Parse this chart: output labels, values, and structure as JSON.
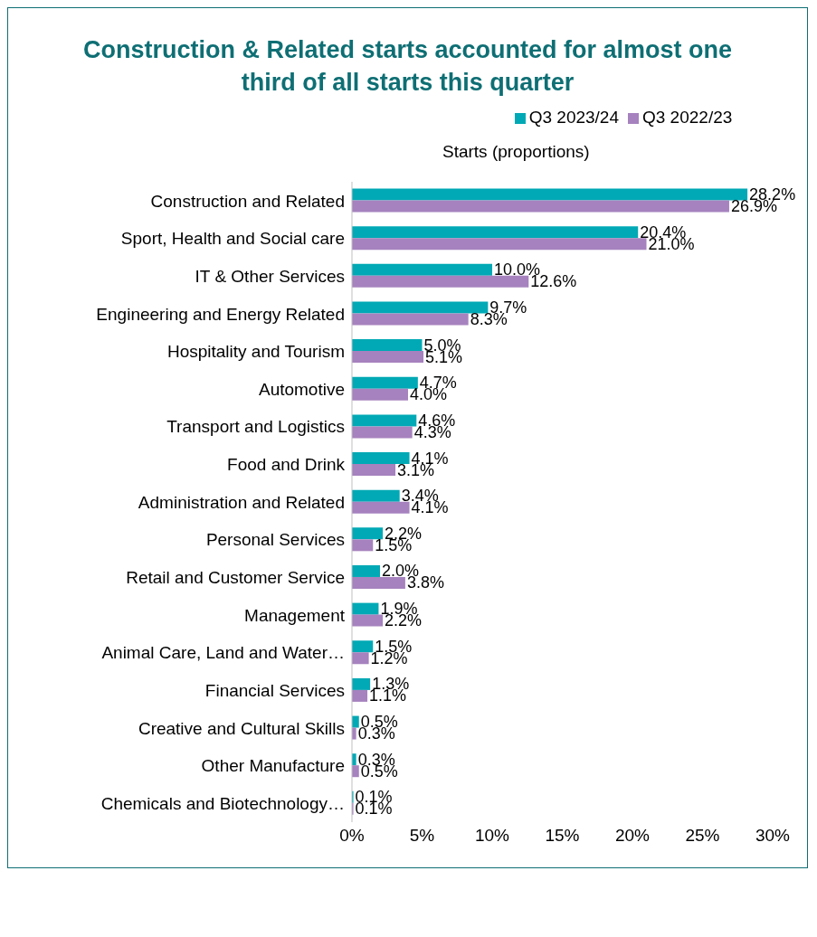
{
  "chart_data": {
    "type": "bar",
    "orientation": "horizontal",
    "title": "Construction & Related starts accounted for almost one third of all starts this quarter",
    "xlabel": "Starts (proportions)",
    "categories": [
      "Construction and Related",
      "Sport, Health and Social care",
      "IT & Other Services",
      "Engineering and Energy Related",
      "Hospitality and Tourism",
      "Automotive",
      "Transport and Logistics",
      "Food and Drink",
      "Administration and Related",
      "Personal Services",
      "Retail and Customer Service",
      "Management",
      "Animal Care, Land and Water…",
      "Financial Services",
      "Creative and Cultural Skills",
      "Other Manufacture",
      "Chemicals and Biotechnology…"
    ],
    "series": [
      {
        "name": "Q3 2023/24",
        "color": "#00a9b5",
        "values": [
          28.2,
          20.4,
          10.0,
          9.7,
          5.0,
          4.7,
          4.6,
          4.1,
          3.4,
          2.2,
          2.0,
          1.9,
          1.5,
          1.3,
          0.5,
          0.3,
          0.1
        ],
        "value_labels": [
          "28.2%",
          "20.4%",
          "10.0%",
          "9.7%",
          "5.0%",
          "4.7%",
          "4.6%",
          "4.1%",
          "3.4%",
          "2.2%",
          "2.0%",
          "1.9%",
          "1.5%",
          "1.3%",
          "0.5%",
          "0.3%",
          "0.1%"
        ]
      },
      {
        "name": "Q3 2022/23",
        "color": "#a682be",
        "values": [
          26.9,
          21.0,
          12.6,
          8.3,
          5.1,
          4.0,
          4.3,
          3.1,
          4.1,
          1.5,
          3.8,
          2.2,
          1.2,
          1.1,
          0.3,
          0.5,
          0.1
        ],
        "value_labels": [
          "26.9%",
          "21.0%",
          "12.6%",
          "8.3%",
          "5.1%",
          "4.0%",
          "4.3%",
          "3.1%",
          "4.1%",
          "1.5%",
          "3.8%",
          "2.2%",
          "1.2%",
          "1.1%",
          "0.3%",
          "0.5%",
          "0.1%"
        ]
      }
    ],
    "xlim": [
      0,
      30
    ],
    "xticks": [
      {
        "value": 0,
        "label": "0%"
      },
      {
        "value": 5,
        "label": "5%"
      },
      {
        "value": 10,
        "label": "10%"
      },
      {
        "value": 15,
        "label": "15%"
      },
      {
        "value": 20,
        "label": "20%"
      },
      {
        "value": 25,
        "label": "25%"
      },
      {
        "value": 30,
        "label": "30%"
      }
    ],
    "legend": "top",
    "grid": false
  }
}
